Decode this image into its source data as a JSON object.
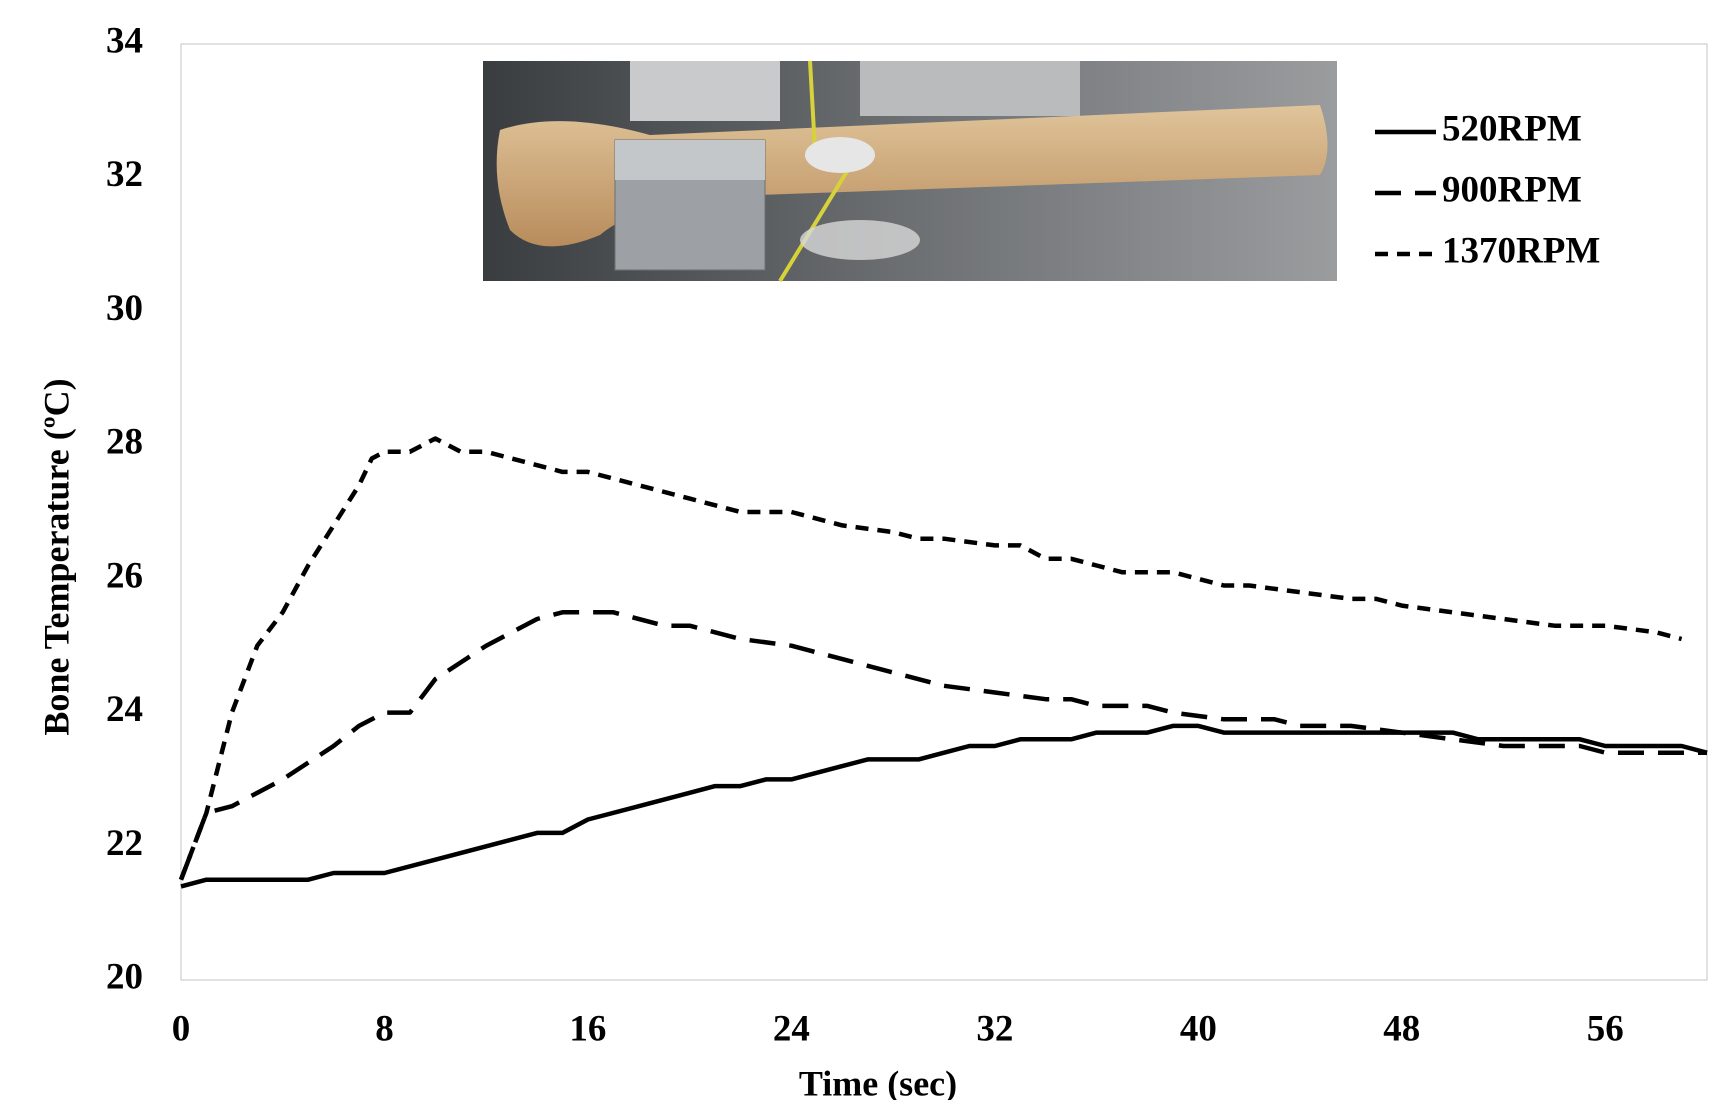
{
  "chart_data": {
    "type": "line",
    "x_label": "Time (sec)",
    "y_label": "Bone Temperature (ºC)",
    "xlim": [
      0,
      60
    ],
    "ylim": [
      20,
      34
    ],
    "xticks": [
      0,
      8,
      16,
      24,
      32,
      40,
      48,
      56
    ],
    "yticks": [
      20,
      22,
      24,
      26,
      28,
      30,
      32,
      34
    ],
    "grid": false,
    "legend": "upper right",
    "series": [
      {
        "name": "520RPM",
        "color": "#000000",
        "x": [
          0,
          1,
          2,
          4,
          5,
          6,
          8,
          10,
          12,
          14,
          15,
          16,
          18,
          20,
          21,
          22,
          23,
          24,
          26,
          27,
          28,
          29,
          30,
          31,
          32,
          33,
          35,
          36,
          38,
          39,
          40,
          41,
          44,
          48,
          50,
          51,
          55,
          56,
          59,
          60
        ],
        "values": [
          21.4,
          21.5,
          21.5,
          21.5,
          21.5,
          21.6,
          21.6,
          21.8,
          22.0,
          22.2,
          22.2,
          22.4,
          22.6,
          22.8,
          22.9,
          22.9,
          23.0,
          23.0,
          23.2,
          23.3,
          23.3,
          23.3,
          23.4,
          23.5,
          23.5,
          23.6,
          23.6,
          23.7,
          23.7,
          23.8,
          23.8,
          23.7,
          23.7,
          23.7,
          23.7,
          23.6,
          23.6,
          23.5,
          23.5,
          23.4
        ]
      },
      {
        "name": "900RPM",
        "color": "#000000",
        "x": [
          0,
          1,
          2,
          4,
          6,
          7,
          8,
          9,
          10,
          12,
          14,
          15,
          17,
          19,
          20,
          22,
          24,
          26,
          28,
          30,
          32,
          34,
          35,
          36,
          38,
          39,
          41,
          43,
          44,
          46,
          48,
          50,
          52,
          54,
          55,
          56,
          60
        ],
        "values": [
          21.5,
          22.5,
          22.6,
          23.0,
          23.5,
          23.8,
          24.0,
          24.0,
          24.5,
          25.0,
          25.4,
          25.5,
          25.5,
          25.3,
          25.3,
          25.1,
          25.0,
          24.8,
          24.6,
          24.4,
          24.3,
          24.2,
          24.2,
          24.1,
          24.1,
          24.0,
          23.9,
          23.9,
          23.8,
          23.8,
          23.7,
          23.6,
          23.5,
          23.5,
          23.5,
          23.4,
          23.4
        ]
      },
      {
        "name": "1370RPM",
        "color": "#000000",
        "x": [
          0,
          1,
          2,
          3,
          4,
          5,
          6,
          7,
          7.5,
          8,
          9,
          10,
          11,
          12,
          14,
          15,
          16,
          18,
          20,
          22,
          24,
          26,
          28,
          29,
          30,
          32,
          33,
          34,
          35,
          36,
          37,
          38,
          39,
          40,
          41,
          42,
          44,
          46,
          47,
          48,
          50,
          52,
          54,
          56,
          58,
          59
        ],
        "values": [
          21.5,
          22.5,
          24.0,
          25.0,
          25.5,
          26.2,
          26.8,
          27.4,
          27.8,
          27.9,
          27.9,
          28.1,
          27.9,
          27.9,
          27.7,
          27.6,
          27.6,
          27.4,
          27.2,
          27.0,
          27.0,
          26.8,
          26.7,
          26.6,
          26.6,
          26.5,
          26.5,
          26.3,
          26.3,
          26.2,
          26.1,
          26.1,
          26.1,
          26.0,
          25.9,
          25.9,
          25.8,
          25.7,
          25.7,
          25.6,
          25.5,
          25.4,
          25.3,
          25.3,
          25.2,
          25.1
        ]
      }
    ]
  }
}
